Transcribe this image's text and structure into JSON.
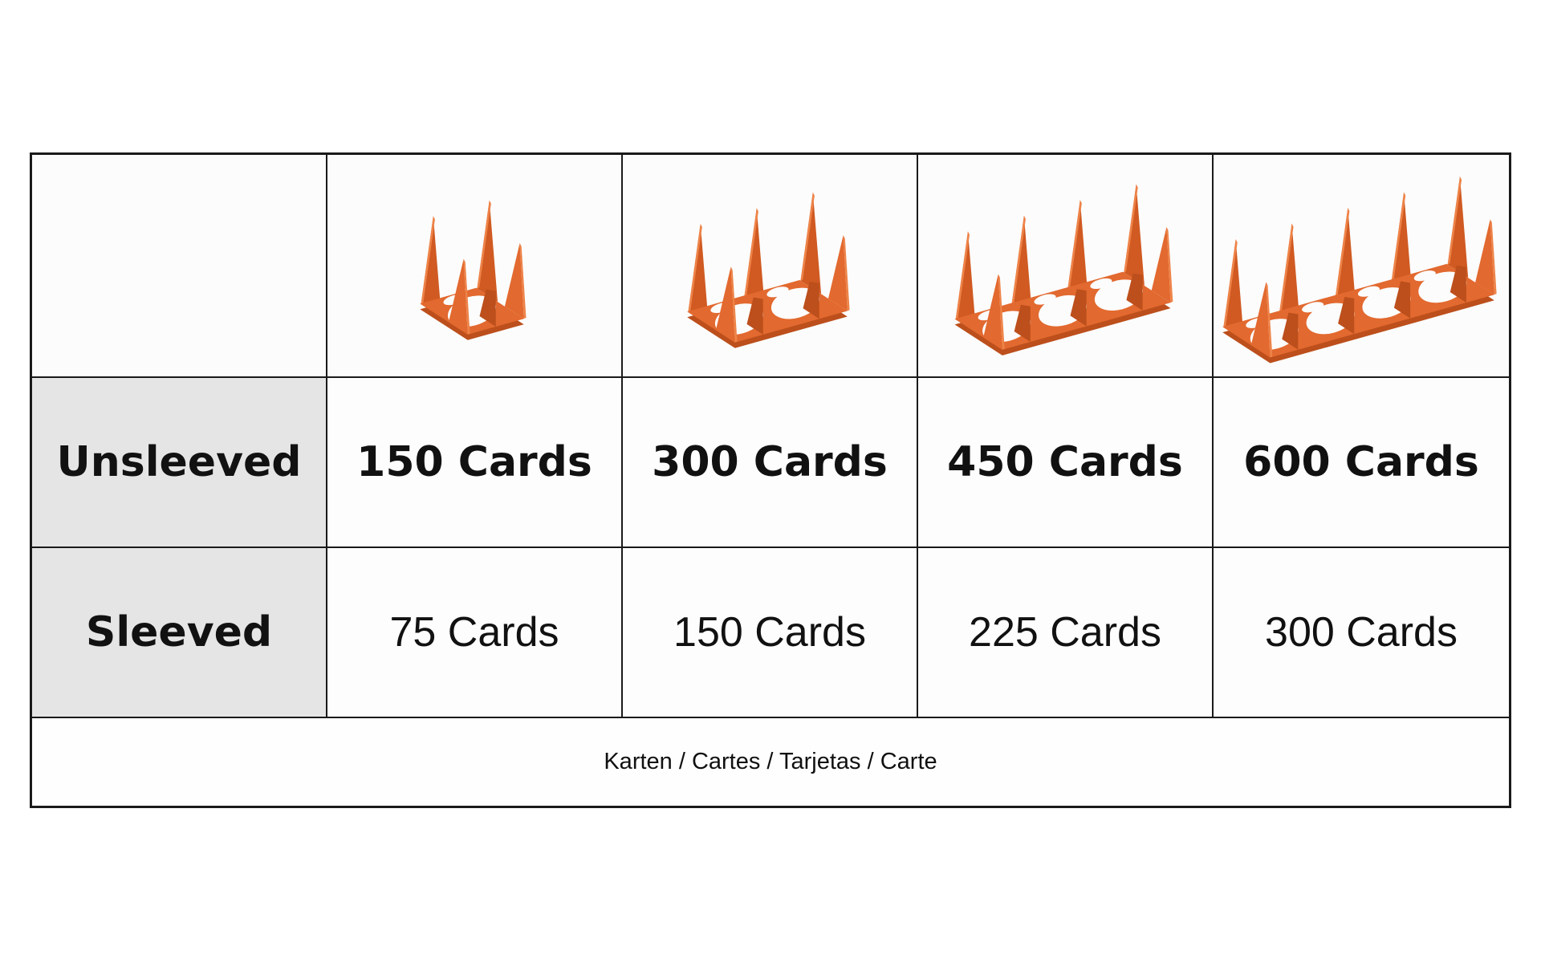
{
  "table": {
    "products": [
      {
        "name": "card-holder-1-slot",
        "slots": 1
      },
      {
        "name": "card-holder-2-slot",
        "slots": 2
      },
      {
        "name": "card-holder-3-slot",
        "slots": 3
      },
      {
        "name": "card-holder-4-slot",
        "slots": 4
      }
    ],
    "rows": [
      {
        "label": "Unsleeved",
        "values": [
          "150 Cards",
          "300 Cards",
          "450 Cards",
          "600 Cards"
        ]
      },
      {
        "label": "Sleeved",
        "values": [
          "75 Cards",
          "150 Cards",
          "225 Cards",
          "300 Cards"
        ]
      }
    ],
    "footer": "Karten / Cartes / Tarjetas / Carte"
  },
  "colors": {
    "holder_main": "#E2692F",
    "holder_mid": "#D05A22",
    "holder_dark": "#BC4F1C",
    "holder_light": "#EE8348",
    "label_cell_bg": "#E5E5E5",
    "border": "#1A1A1A",
    "cutout": "#FCFCFC"
  }
}
